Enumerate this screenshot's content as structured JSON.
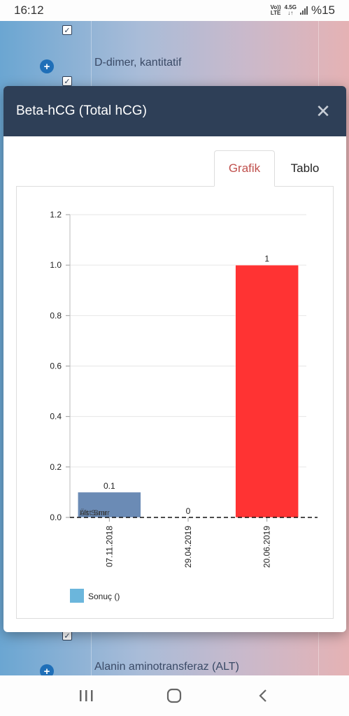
{
  "status_bar": {
    "time": "16:12",
    "volte_top": "Vo))",
    "volte_bottom": "LTE",
    "net_top": "4.5G",
    "net_bottom": "↓↑",
    "battery": "%15"
  },
  "background": {
    "items": [
      {
        "label": "D-dimer, kantitatif"
      },
      {
        "label": "Alanin aminotransferaz (ALT)"
      }
    ]
  },
  "modal": {
    "title": "Beta-hCG (Total hCG)",
    "close_icon": "close-icon",
    "tabs": [
      {
        "label": "Grafik",
        "active": true
      },
      {
        "label": "Tablo",
        "active": false
      }
    ]
  },
  "chart_data": {
    "type": "bar",
    "categories": [
      "07.11.2018",
      "29.04.2019",
      "20.06.2019"
    ],
    "series": [
      {
        "name": "Sonuç ()",
        "values": [
          0.1,
          0,
          1
        ]
      }
    ],
    "data_labels": [
      "0.1",
      "0",
      "1"
    ],
    "bar_colors": [
      "#6b8bb5",
      "#6b8bb5",
      "#ff3333"
    ],
    "legend_color": "#6bb6dc",
    "legend_position": "bottom-left",
    "ylim": [
      0,
      1.2
    ],
    "yticks": [
      "0.0",
      "0.2",
      "0.4",
      "0.6",
      "0.8",
      "1.0",
      "1.2"
    ],
    "ytick_values": [
      0,
      0.2,
      0.4,
      0.6,
      0.8,
      1.0,
      1.2
    ],
    "reference_line_labels": [
      "Üst Sınır",
      "Alt Sınır"
    ],
    "reference_line_value": 0,
    "grid": true
  },
  "nav_bar": {
    "recent_icon": "recent-apps-icon",
    "home_icon": "home-icon",
    "back_icon": "back-icon"
  }
}
